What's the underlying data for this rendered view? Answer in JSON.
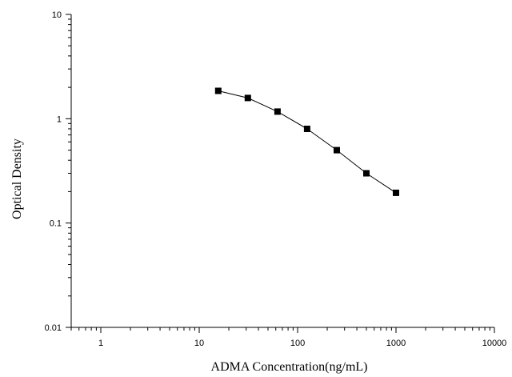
{
  "chart_data": {
    "type": "line",
    "title": "",
    "xlabel": "ADMA Concentration(ng/mL)",
    "ylabel": "Optical Density",
    "xscale": "log",
    "yscale": "log",
    "xlim": [
      0.5,
      10000
    ],
    "ylim": [
      0.01,
      10
    ],
    "xticks": [
      1,
      10,
      100,
      1000,
      10000
    ],
    "xtick_labels": [
      "1",
      "10",
      "100",
      "1000",
      "10000"
    ],
    "yticks": [
      0.01,
      0.1,
      1,
      10
    ],
    "ytick_labels": [
      "0.01",
      "0.1",
      "1",
      "10"
    ],
    "grid": false,
    "legend": "none",
    "marker": "square",
    "colors": {
      "line": "#000000",
      "marker": "#000000",
      "axis": "#000000"
    },
    "series": [
      {
        "x": [
          15.6,
          31.2,
          62.5,
          125,
          250,
          500,
          1000
        ],
        "y": [
          1.85,
          1.58,
          1.17,
          0.8,
          0.5,
          0.3,
          0.195
        ]
      }
    ]
  }
}
